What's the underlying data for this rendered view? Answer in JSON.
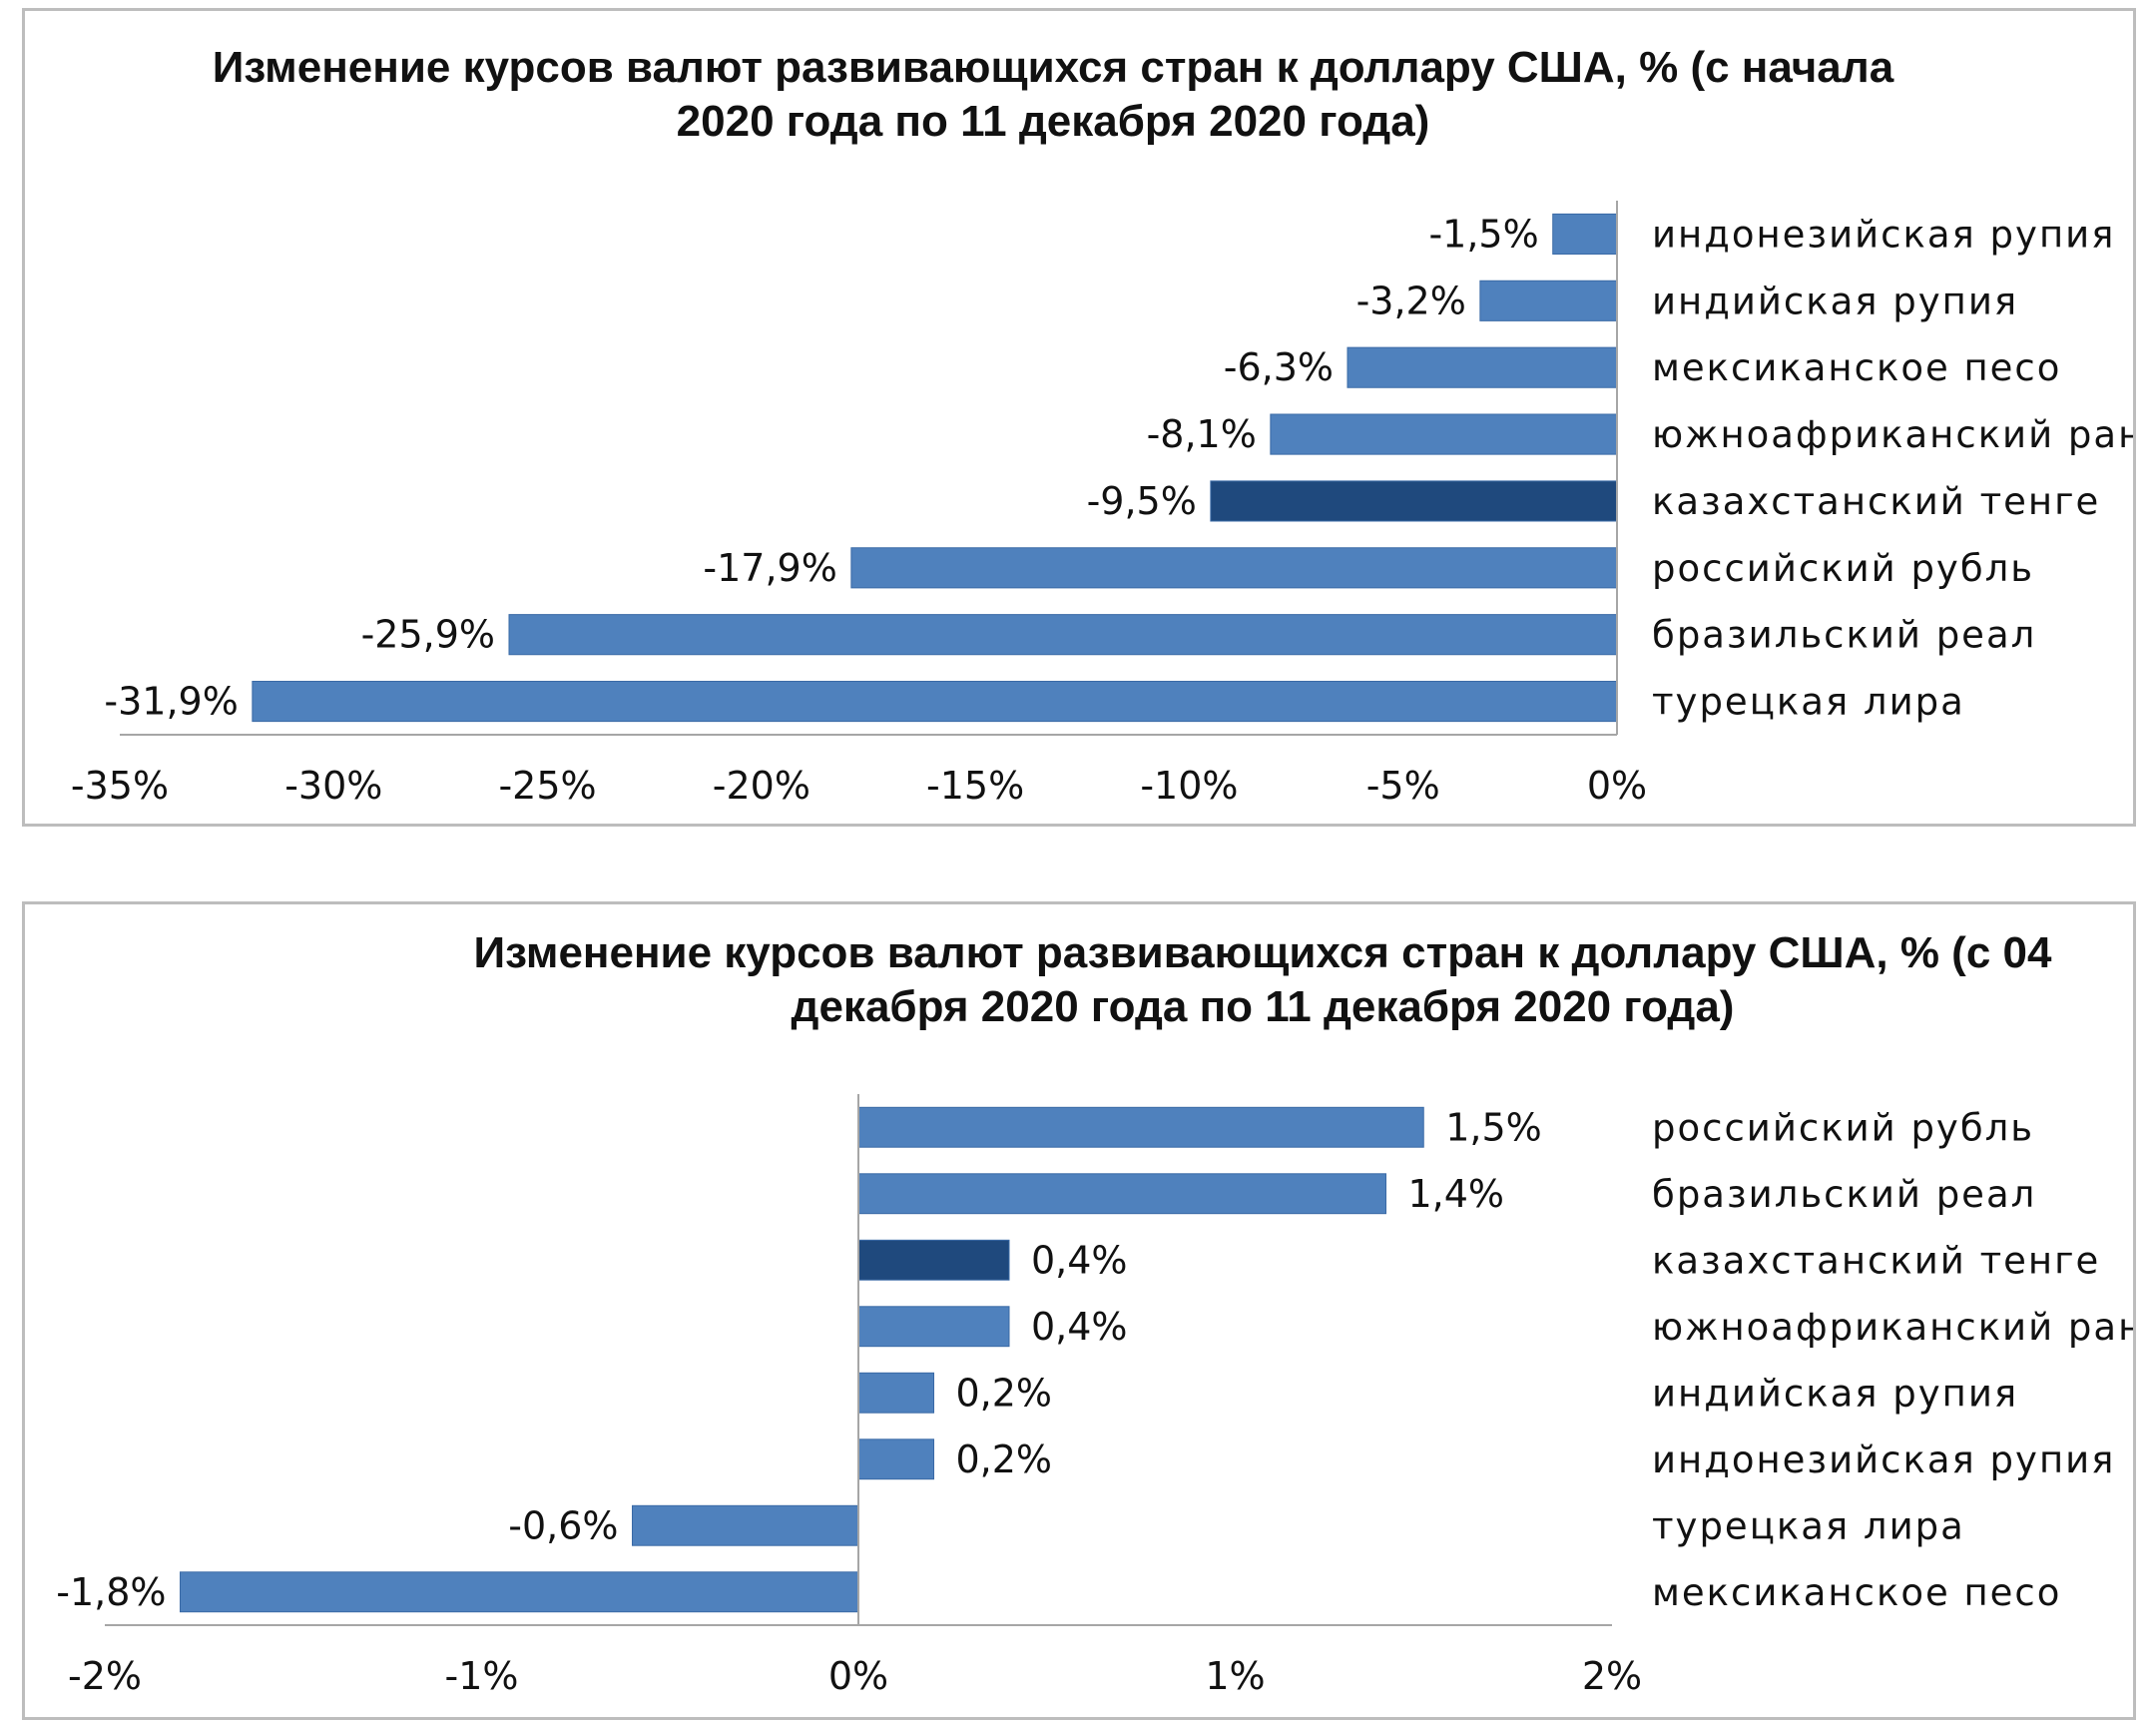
{
  "charts": [
    {
      "title": "Изменение курсов валют развивающихся стран к доллару США, % (с начала 2020 года по 11 декабря 2020 года)",
      "chart_data": {
        "type": "bar",
        "orientation": "horizontal",
        "categories": [
          "индонезийская рупия",
          "индийская рупия",
          "мексиканское песо",
          "южноафриканский ранд",
          "казахстанский тенге",
          "российский рубль",
          "бразильский реал",
          "турецкая лира"
        ],
        "values": [
          -1.5,
          -3.2,
          -6.3,
          -8.1,
          -9.5,
          -17.9,
          -25.9,
          -31.9
        ],
        "data_labels": [
          "-1,5%",
          "-3,2%",
          "-6,3%",
          "-8,1%",
          "-9,5%",
          "-17,9%",
          "-25,9%",
          "-31,9%"
        ],
        "highlight": "казахстанский тенге",
        "xlim": [
          -35,
          0
        ],
        "x_ticks": [
          -35,
          -30,
          -25,
          -20,
          -15,
          -10,
          -5,
          0
        ],
        "x_tick_labels": [
          "-35%",
          "-30%",
          "-25%",
          "-20%",
          "-15%",
          "-10%",
          "-5%",
          "0%"
        ],
        "grid": false,
        "colors": {
          "bar": "#4f81bd",
          "highlight": "#1f497d",
          "axis": "#a6a6a6"
        }
      }
    },
    {
      "title": "Изменение курсов валют развивающихся стран к доллару США, % (с 04 декабря 2020 года по 11 декабря 2020 года)",
      "chart_data": {
        "type": "bar",
        "orientation": "horizontal",
        "categories": [
          "российский рубль",
          "бразильский реал",
          "казахстанский тенге",
          "южноафриканский ранд",
          "индийская рупия",
          "индонезийская рупия",
          "турецкая лира",
          "мексиканское песо"
        ],
        "values": [
          1.5,
          1.4,
          0.4,
          0.4,
          0.2,
          0.2,
          -0.6,
          -1.8
        ],
        "data_labels": [
          "1,5%",
          "1,4%",
          "0,4%",
          "0,4%",
          "0,2%",
          "0,2%",
          "-0,6%",
          "-1,8%"
        ],
        "highlight": "казахстанский тенге",
        "xlim": [
          -2,
          2
        ],
        "x_ticks": [
          -2,
          -1,
          0,
          1,
          2
        ],
        "x_tick_labels": [
          "-2%",
          "-1%",
          "0%",
          "1%",
          "2%"
        ],
        "grid": false,
        "colors": {
          "bar": "#4f81bd",
          "highlight": "#1f497d",
          "axis": "#a6a6a6"
        }
      }
    }
  ]
}
